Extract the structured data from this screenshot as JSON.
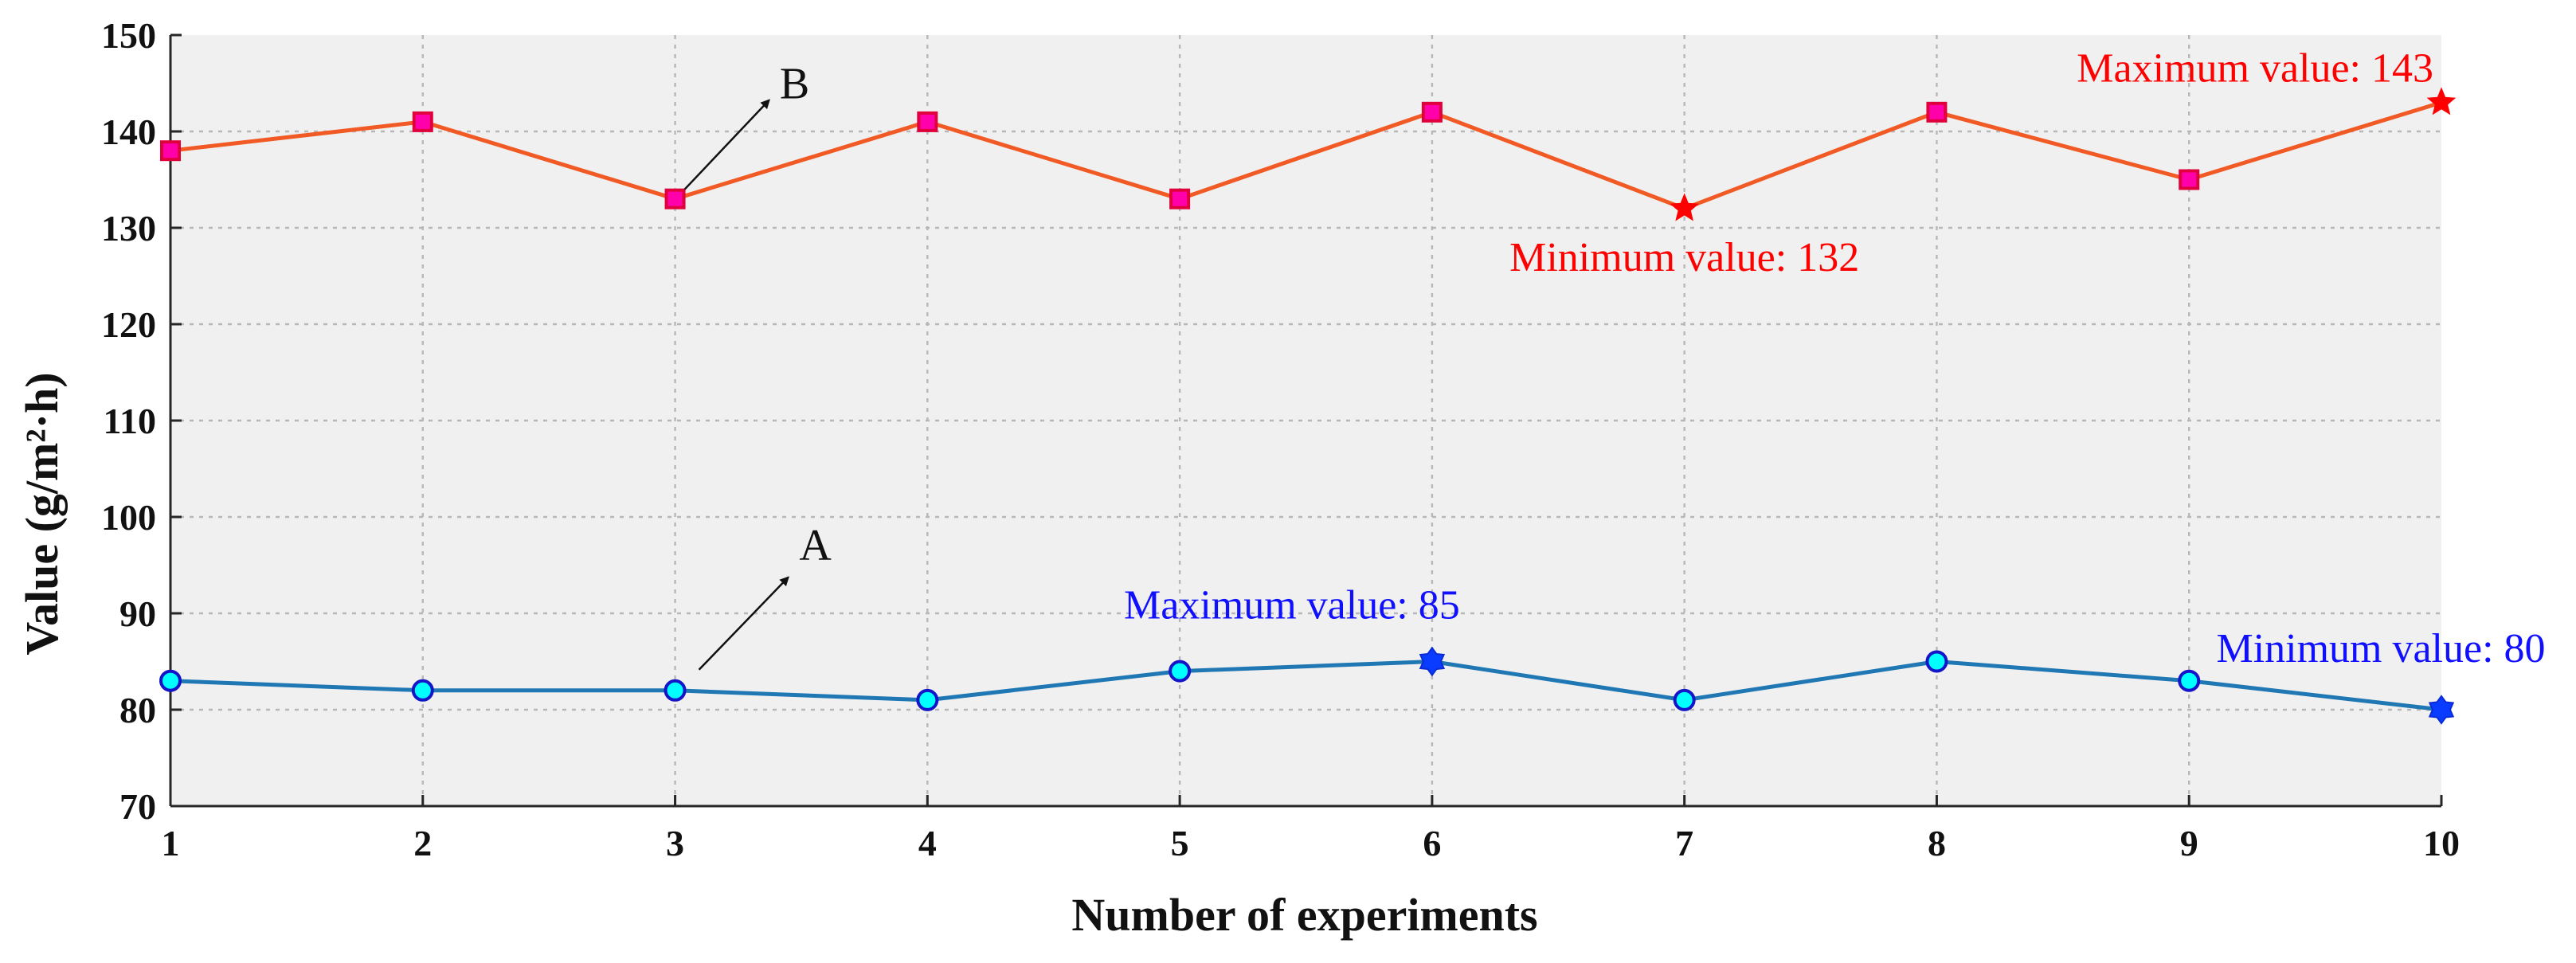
{
  "chart_data": {
    "type": "line",
    "title": "",
    "xlabel": "Number of experiments",
    "ylabel": "Value (g/m²·h)",
    "x": [
      1,
      2,
      3,
      4,
      5,
      6,
      7,
      8,
      9,
      10
    ],
    "xlim": [
      1,
      10
    ],
    "ylim": [
      70,
      150
    ],
    "xticks": [
      "1",
      "2",
      "3",
      "4",
      "5",
      "6",
      "7",
      "8",
      "9",
      "10"
    ],
    "yticks": [
      "70",
      "80",
      "90",
      "100",
      "110",
      "120",
      "130",
      "140",
      "150"
    ],
    "grid": true,
    "series": [
      {
        "name": "B",
        "values": [
          138,
          141,
          133,
          141,
          133,
          142,
          132,
          142,
          135,
          143
        ],
        "line_color": "#f15a24",
        "marker": "square",
        "marker_color": "#ff00aa",
        "special_marker_color": "#ff0000"
      },
      {
        "name": "A",
        "values": [
          83,
          82,
          82,
          81,
          84,
          85,
          81,
          85,
          83,
          80
        ],
        "line_color": "#1f77b4",
        "marker": "circle",
        "marker_color": "#00ffff",
        "special_marker_color": "#0a3cff"
      }
    ],
    "annotations": [
      {
        "text": "Maximum value: 143",
        "x": 10,
        "y": 143,
        "series": "B",
        "color": "#ff0000"
      },
      {
        "text": "Minimum value: 132",
        "x": 7,
        "y": 132,
        "series": "B",
        "color": "#ff0000"
      },
      {
        "text": "Maximum value: 85",
        "x": 6,
        "y": 85,
        "series": "A",
        "color": "#1010ff"
      },
      {
        "text": "Minimum value: 80",
        "x": 10,
        "y": 80,
        "series": "A",
        "color": "#1010ff"
      }
    ],
    "series_labels": [
      {
        "text": "B",
        "points_to": [
          3,
          133
        ]
      },
      {
        "text": "A",
        "points_to": [
          3,
          82
        ]
      }
    ],
    "plot_background": "#f0f0f0"
  }
}
